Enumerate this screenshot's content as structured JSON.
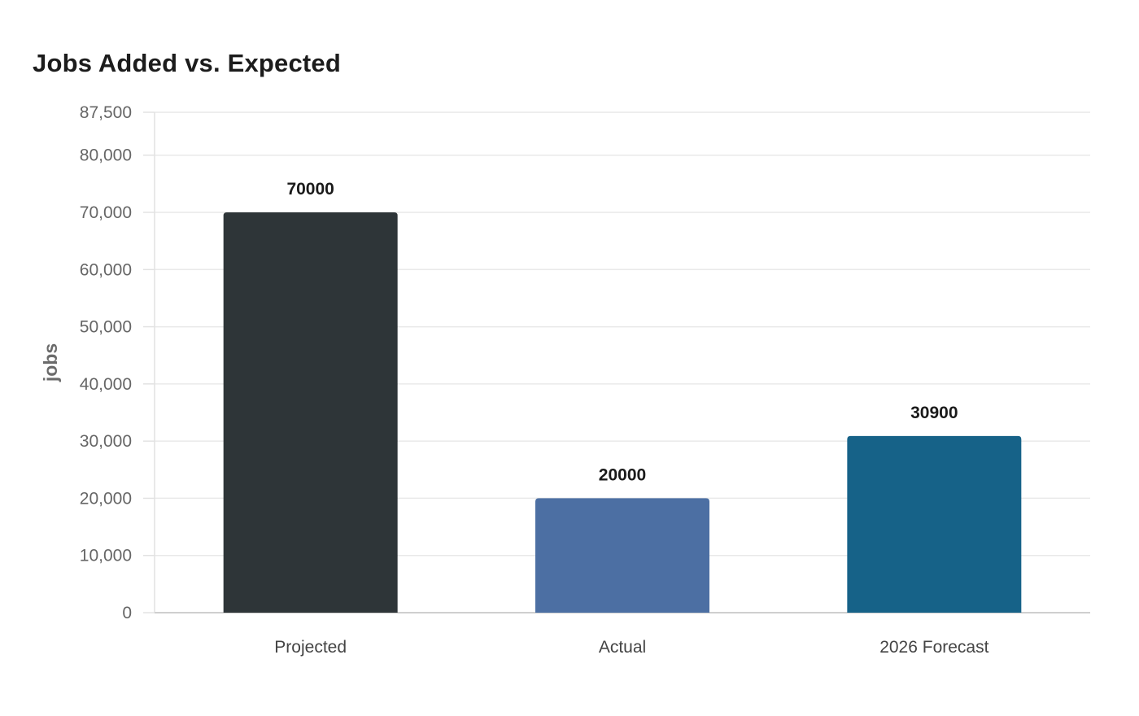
{
  "chart_data": {
    "type": "bar",
    "title": "Jobs Added vs. Expected",
    "xlabel": "",
    "ylabel": "jobs",
    "categories": [
      "Projected",
      "Actual",
      "2026 Forecast"
    ],
    "values": [
      70000,
      20000,
      30900
    ],
    "value_labels": [
      "70000",
      "20000",
      "30900"
    ],
    "colors": [
      "#2e3538",
      "#4c6fa3",
      "#166288"
    ],
    "ylim": [
      0,
      87500
    ],
    "yticks": [
      0,
      10000,
      20000,
      30000,
      40000,
      50000,
      60000,
      70000,
      80000,
      87500
    ],
    "ytick_labels": [
      "0",
      "10,000",
      "20,000",
      "30,000",
      "40,000",
      "50,000",
      "60,000",
      "70,000",
      "80,000",
      "87,500"
    ],
    "grid": true,
    "legend": "none"
  }
}
